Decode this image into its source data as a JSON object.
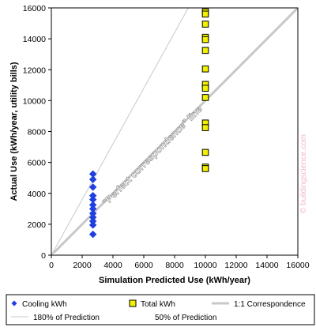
{
  "chart_data": {
    "type": "scatter",
    "title": "",
    "xlabel": "Simulation Predicted Use (kWh/year)",
    "ylabel": "Actual Use (kWh/year, utility bills)",
    "xlim": [
      0,
      16000
    ],
    "ylim": [
      0,
      16000
    ],
    "xticks": [
      0,
      2000,
      4000,
      6000,
      8000,
      10000,
      12000,
      14000,
      16000
    ],
    "yticks": [
      0,
      2000,
      4000,
      6000,
      8000,
      10000,
      12000,
      14000,
      16000
    ],
    "grid": false,
    "legend_position": "bottom",
    "series": [
      {
        "name": "Cooling kWh",
        "marker": "diamond",
        "color": "#1f3fe0",
        "points": [
          [
            2700,
            5250
          ],
          [
            2700,
            4900
          ],
          [
            2700,
            4400
          ],
          [
            2700,
            3850
          ],
          [
            2700,
            3600
          ],
          [
            2700,
            3250
          ],
          [
            2700,
            3000
          ],
          [
            2700,
            2700
          ],
          [
            2700,
            2450
          ],
          [
            2700,
            2200
          ],
          [
            2700,
            1950
          ],
          [
            2700,
            1350
          ]
        ]
      },
      {
        "name": "Total kWh",
        "marker": "square",
        "color": "#f2f200",
        "points": [
          [
            10000,
            15750
          ],
          [
            10000,
            15600
          ],
          [
            10000,
            14950
          ],
          [
            10000,
            14100
          ],
          [
            10000,
            13950
          ],
          [
            10000,
            13250
          ],
          [
            10000,
            12050
          ],
          [
            10000,
            11050
          ],
          [
            10000,
            10800
          ],
          [
            10000,
            10200
          ],
          [
            10000,
            8550
          ],
          [
            10000,
            8250
          ],
          [
            10000,
            6650
          ],
          [
            10000,
            5700
          ],
          [
            10000,
            5600
          ]
        ]
      }
    ],
    "reference_lines": [
      {
        "name": "1:1 Correspondence",
        "slope": 1.0,
        "color": "#c8c8c8",
        "width": 3
      },
      {
        "name": "180% of Prediction",
        "slope": 1.8,
        "color": "#c8c8c8",
        "width": 1
      },
      {
        "name": "50% of Prediction",
        "slope": 0.5,
        "color": "#ffffff",
        "width": 1
      }
    ],
    "annotations": {
      "diagonal_label": "\"Perfect correspondence\" line",
      "watermark": "© buildingscience.com"
    }
  }
}
